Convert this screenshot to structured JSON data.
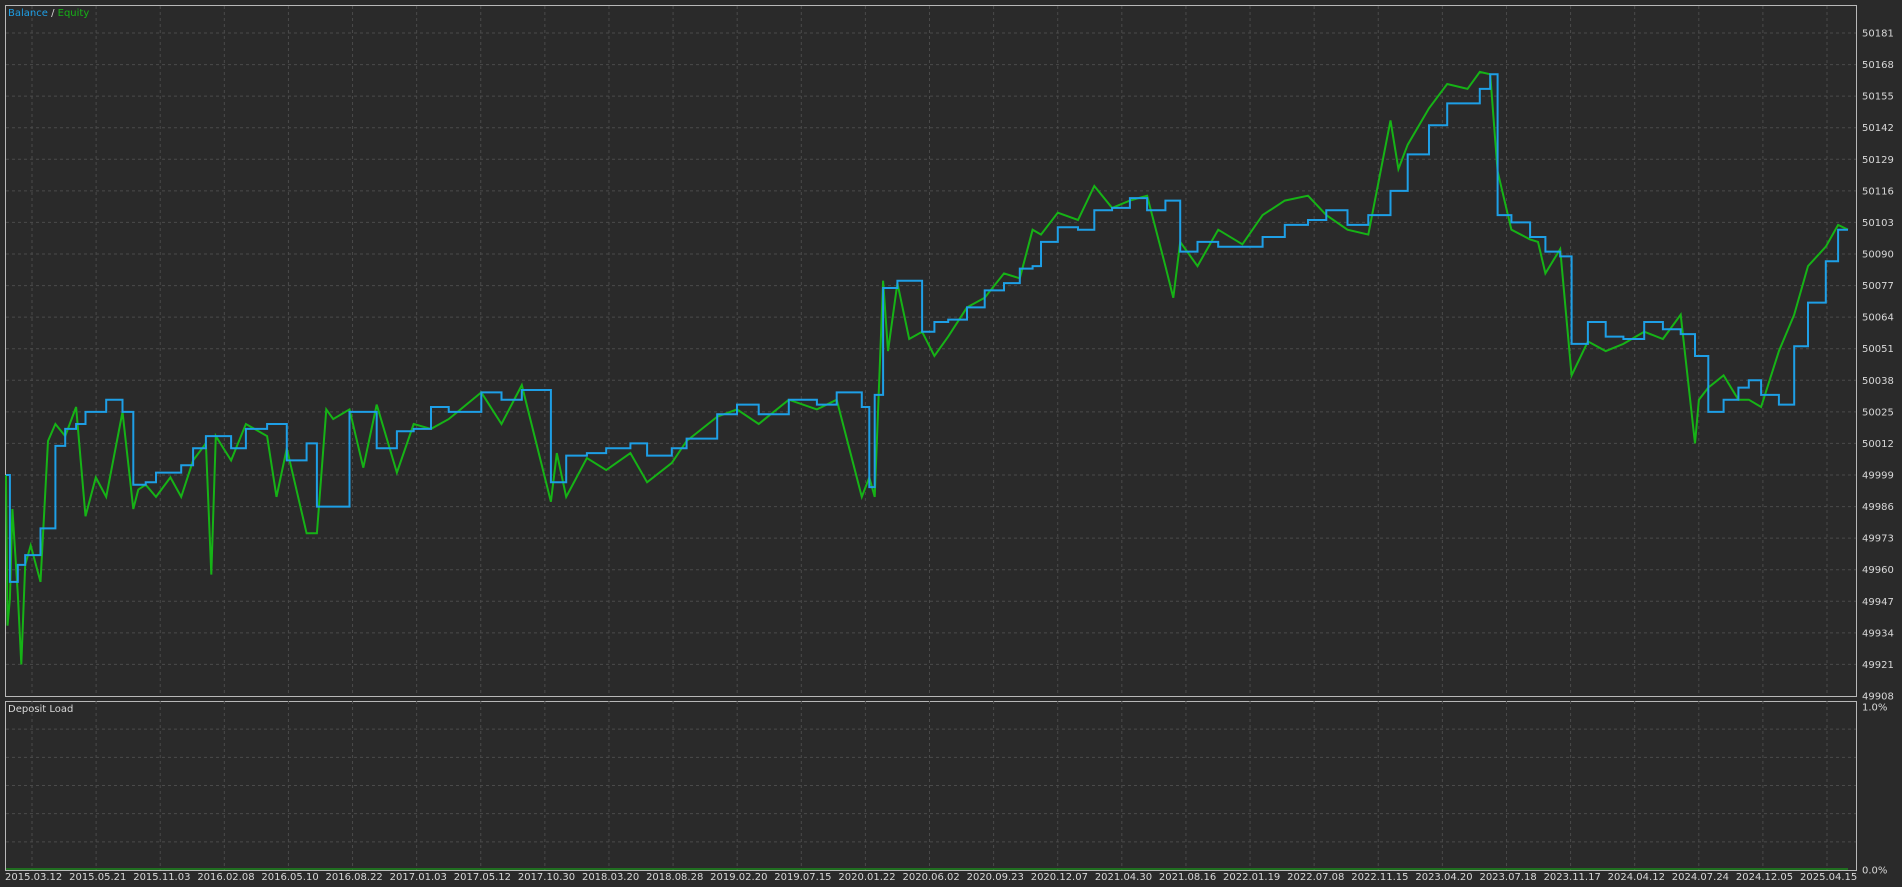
{
  "chart_data": [
    {
      "type": "line",
      "title": "",
      "legend": {
        "separator": " / ",
        "placement": "top-left",
        "entries": [
          {
            "name": "Balance",
            "color": "#1e9fe6"
          },
          {
            "name": "Equity",
            "color": "#16b316"
          }
        ]
      },
      "ylim": [
        49908,
        50188
      ],
      "y_ticks": [
        "50181",
        "50168",
        "50155",
        "50142",
        "50129",
        "50116",
        "50103",
        "50090",
        "50077",
        "50064",
        "50051",
        "50038",
        "50025",
        "50012",
        "49999",
        "49986",
        "49973",
        "49960",
        "49947",
        "49934",
        "49921",
        "49908"
      ],
      "grid": true,
      "series": [
        {
          "name": "Balance",
          "color": "#1e9fe6",
          "x": [
            "2015.03.12",
            "2015.03.20",
            "2015.04.05",
            "2015.04.20",
            "2015.05.21",
            "2015.06.20",
            "2015.07.10",
            "2015.08.01",
            "2015.08.20",
            "2015.09.10",
            "2015.10.01",
            "2015.11.03",
            "2015.11.25",
            "2015.12.20",
            "2016.01.10",
            "2016.02.08",
            "2016.03.01",
            "2016.03.25",
            "2016.04.20",
            "2016.05.10",
            "2016.06.10",
            "2016.07.10",
            "2016.08.22",
            "2016.10.01",
            "2016.11.10",
            "2016.12.01",
            "2017.01.03",
            "2017.02.05",
            "2017.03.05",
            "2017.04.01",
            "2017.05.12",
            "2017.06.15",
            "2017.07.20",
            "2017.08.25",
            "2017.10.30",
            "2017.12.10",
            "2018.01.20",
            "2018.03.20",
            "2018.04.20",
            "2018.06.01",
            "2018.07.10",
            "2018.08.28",
            "2018.10.01",
            "2018.11.20",
            "2018.12.20",
            "2019.02.20",
            "2019.04.01",
            "2019.05.15",
            "2019.07.15",
            "2019.09.10",
            "2019.10.20",
            "2019.12.10",
            "2019.12.25",
            "2020.01.05",
            "2020.01.22",
            "2020.02.20",
            "2020.03.15",
            "2020.04.10",
            "2020.05.05",
            "2020.06.02",
            "2020.07.10",
            "2020.08.15",
            "2020.09.23",
            "2020.10.25",
            "2020.11.20",
            "2020.12.07",
            "2021.01.10",
            "2021.02.20",
            "2021.03.25",
            "2021.04.30",
            "2021.06.05",
            "2021.07.10",
            "2021.08.16",
            "2021.09.15",
            "2021.10.20",
            "2021.12.01",
            "2022.01.19",
            "2022.03.01",
            "2022.04.15",
            "2022.06.01",
            "2022.07.08",
            "2022.08.20",
            "2022.10.01",
            "2022.11.15",
            "2022.12.20",
            "2023.02.01",
            "2023.03.10",
            "2023.04.20",
            "2023.05.15",
            "2023.06.05",
            "2023.06.20",
            "2023.07.18",
            "2023.08.25",
            "2023.09.25",
            "2023.10.25",
            "2023.11.17",
            "2023.12.20",
            "2024.01.25",
            "2024.03.01",
            "2024.04.12",
            "2024.05.20",
            "2024.06.25",
            "2024.07.24",
            "2024.08.20",
            "2024.09.20",
            "2024.10.20",
            "2024.11.10",
            "2024.12.05",
            "2025.01.10",
            "2025.02.10",
            "2025.03.10",
            "2025.04.15",
            "2025.05.10",
            "2025.05.30"
          ],
          "y": [
            49999,
            49955,
            49962,
            49966,
            49977,
            50011,
            50018,
            50020,
            50025,
            50025,
            50030,
            50025,
            49995,
            49996,
            50000,
            50000,
            50003,
            50010,
            50015,
            50015,
            50010,
            50018,
            50020,
            50005,
            50012,
            49986,
            49986,
            50025,
            50025,
            50010,
            50017,
            50018,
            50027,
            50025,
            50033,
            50030,
            50034,
            49996,
            50007,
            50008,
            50010,
            50012,
            50007,
            50010,
            50014,
            50024,
            50028,
            50024,
            50030,
            50028,
            50033,
            50027,
            49994,
            50032,
            50076,
            50079,
            50079,
            50058,
            50062,
            50063,
            50068,
            50075,
            50078,
            50084,
            50085,
            50095,
            50101,
            50100,
            50108,
            50109,
            50113,
            50108,
            50112,
            50091,
            50095,
            50093,
            50093,
            50097,
            50102,
            50104,
            50108,
            50102,
            50106,
            50116,
            50131,
            50143,
            50152,
            50152,
            50158,
            50164,
            50106,
            50103,
            50097,
            50091,
            50089,
            50053,
            50062,
            50056,
            50055,
            50062,
            50059,
            50057,
            50048,
            50025,
            50030,
            50035,
            50038,
            50032,
            50028,
            50052,
            50070,
            50087,
            50100,
            50100
          ]
        },
        {
          "name": "Equity",
          "color": "#16b316",
          "x": [
            "2015.03.12",
            "2015.03.15",
            "2015.03.20",
            "2015.03.25",
            "2015.04.05",
            "2015.04.12",
            "2015.04.20",
            "2015.05.01",
            "2015.05.21",
            "2015.06.05",
            "2015.06.20",
            "2015.07.10",
            "2015.08.01",
            "2015.08.20",
            "2015.09.10",
            "2015.10.01",
            "2015.11.03",
            "2015.11.25",
            "2015.12.05",
            "2015.12.20",
            "2016.01.10",
            "2016.02.08",
            "2016.03.01",
            "2016.03.25",
            "2016.04.20",
            "2016.05.01",
            "2016.05.10",
            "2016.06.10",
            "2016.07.10",
            "2016.08.22",
            "2016.09.10",
            "2016.10.01",
            "2016.11.10",
            "2016.12.01",
            "2016.12.20",
            "2017.01.03",
            "2017.02.05",
            "2017.03.05",
            "2017.04.01",
            "2017.05.12",
            "2017.06.15",
            "2017.07.20",
            "2017.08.25",
            "2017.10.30",
            "2017.12.10",
            "2018.01.20",
            "2018.03.20",
            "2018.04.01",
            "2018.04.20",
            "2018.06.01",
            "2018.07.10",
            "2018.08.28",
            "2018.10.01",
            "2018.11.20",
            "2018.12.20",
            "2019.02.20",
            "2019.04.01",
            "2019.05.15",
            "2019.07.15",
            "2019.09.10",
            "2019.10.20",
            "2019.12.10",
            "2019.12.25",
            "2020.01.05",
            "2020.01.22",
            "2020.02.01",
            "2020.02.20",
            "2020.03.15",
            "2020.04.10",
            "2020.05.05",
            "2020.06.02",
            "2020.07.10",
            "2020.08.15",
            "2020.09.23",
            "2020.10.25",
            "2020.11.20",
            "2020.12.07",
            "2021.01.10",
            "2021.02.20",
            "2021.03.25",
            "2021.04.30",
            "2021.06.05",
            "2021.07.10",
            "2021.08.16",
            "2021.09.01",
            "2021.09.15",
            "2021.10.20",
            "2021.12.01",
            "2022.01.19",
            "2022.03.01",
            "2022.04.15",
            "2022.06.01",
            "2022.07.08",
            "2022.08.20",
            "2022.10.01",
            "2022.11.15",
            "2022.12.01",
            "2022.12.20",
            "2023.02.01",
            "2023.03.10",
            "2023.04.20",
            "2023.05.15",
            "2023.06.05",
            "2023.06.20",
            "2023.07.18",
            "2023.08.25",
            "2023.09.10",
            "2023.09.25",
            "2023.10.25",
            "2023.11.17",
            "2023.12.20",
            "2024.01.25",
            "2024.03.01",
            "2024.04.12",
            "2024.05.20",
            "2024.06.25",
            "2024.07.24",
            "2024.08.01",
            "2024.08.20",
            "2024.09.20",
            "2024.10.20",
            "2024.11.10",
            "2024.12.05",
            "2025.01.10",
            "2025.02.10",
            "2025.03.10",
            "2025.04.15",
            "2025.05.10",
            "2025.05.30"
          ],
          "y": [
            49999,
            49937,
            49948,
            49985,
            49950,
            49921,
            49962,
            49970,
            49955,
            50013,
            50020,
            50015,
            50027,
            49982,
            49998,
            49990,
            50025,
            49985,
            49993,
            49995,
            49990,
            49998,
            49990,
            50005,
            50012,
            49958,
            50015,
            50005,
            50020,
            50015,
            49990,
            50010,
            49975,
            49975,
            50026,
            50022,
            50026,
            50002,
            50028,
            50000,
            50020,
            50018,
            50022,
            50033,
            50020,
            50036,
            49988,
            50008,
            49990,
            50006,
            50001,
            50008,
            49996,
            50004,
            50013,
            50023,
            50026,
            50020,
            50030,
            50026,
            50030,
            49990,
            49998,
            49990,
            50079,
            50050,
            50078,
            50055,
            50058,
            50048,
            50056,
            50068,
            50072,
            50082,
            50080,
            50100,
            50098,
            50107,
            50104,
            50118,
            50109,
            50112,
            50114,
            50085,
            50072,
            50095,
            50085,
            50100,
            50094,
            50106,
            50112,
            50114,
            50106,
            50100,
            50098,
            50145,
            50125,
            50135,
            50150,
            50160,
            50158,
            50165,
            50164,
            50124,
            50100,
            50096,
            50095,
            50082,
            50092,
            50040,
            50054,
            50050,
            50053,
            50058,
            50055,
            50065,
            50012,
            50030,
            50035,
            50040,
            50030,
            50030,
            50027,
            50050,
            50065,
            50085,
            50093,
            50102,
            50100
          ]
        }
      ]
    },
    {
      "type": "line",
      "title": "Deposit Load",
      "ylim": [
        0,
        1
      ],
      "y_ticks": [
        "1.0%",
        "0.0%"
      ],
      "grid": true,
      "series": [
        {
          "name": "Deposit Load",
          "color": "#16b316",
          "x": [
            "2015.03.12",
            "2025.05.30"
          ],
          "y": [
            0,
            0
          ]
        }
      ]
    }
  ],
  "x_axis": {
    "labels": [
      "2015.03.12",
      "2015.05.21",
      "2015.11.03",
      "2016.02.08",
      "2016.05.10",
      "2016.08.22",
      "2017.01.03",
      "2017.05.12",
      "2017.10.30",
      "2018.03.20",
      "2018.08.28",
      "2019.02.20",
      "2019.07.15",
      "2020.01.22",
      "2020.06.02",
      "2020.09.23",
      "2020.12.07",
      "2021.04.30",
      "2021.08.16",
      "2022.01.19",
      "2022.07.08",
      "2022.11.15",
      "2023.04.20",
      "2023.07.18",
      "2023.11.17",
      "2024.04.12",
      "2024.07.24",
      "2024.12.05",
      "2025.04.15"
    ]
  },
  "colors": {
    "background": "#2a2a2a",
    "grid": "#4a4a4a",
    "frame": "#b8b8b8",
    "axis_text": "#d8d8d8"
  }
}
